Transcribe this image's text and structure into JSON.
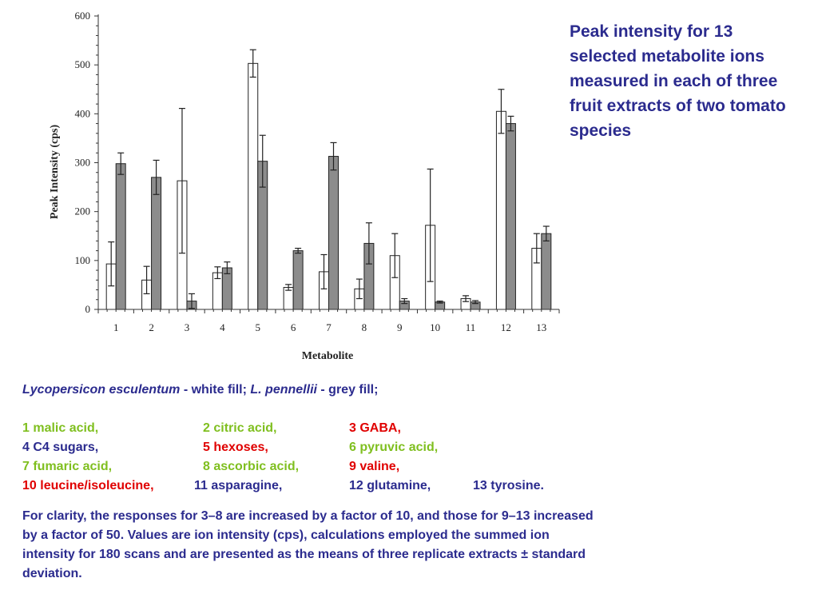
{
  "colors": {
    "text": "#2b2b8e",
    "red": "#e00000",
    "green": "#7fbf1f",
    "white_fill": "#ffffff",
    "grey_fill": "#8c8c8c"
  },
  "side_title": "Peak intensity for 13 selected metabolite ions measured in each of three fruit extracts of two tomato species",
  "legend": {
    "species1": "Lycopersicon esculentum",
    "species1_suffix": " - white fill; ",
    "species2": "L. pennellii",
    "species2_suffix": " - grey fill;"
  },
  "metabolites": [
    {
      "text": "1 malic acid,",
      "color": "green"
    },
    {
      "text": "2 citric acid,",
      "color": "green"
    },
    {
      "text": "3 GABA,",
      "color": "red"
    },
    {
      "text": "4 C4 sugars,",
      "color": "text"
    },
    {
      "text": "5 hexoses,",
      "color": "red"
    },
    {
      "text": "6 pyruvic acid,",
      "color": "green"
    },
    {
      "text": "7 fumaric acid,",
      "color": "green"
    },
    {
      "text": "8 ascorbic acid,",
      "color": "green"
    },
    {
      "text": "9 valine,",
      "color": "red"
    },
    {
      "text": "10 leucine/isoleucine,",
      "color": "red"
    },
    {
      "text": "11 asparagine,",
      "color": "text"
    },
    {
      "text": "12 glutamine,",
      "color": "text"
    },
    {
      "text": "13 tyrosine.",
      "color": "text"
    }
  ],
  "clarity_note": "For clarity, the responses for 3–8 are increased by a factor of 10, and those for 9–13 increased by a factor of 50. Values are ion intensity (cps), calculations employed the summed ion intensity for 180 scans and are presented as the means of three replicate extracts ± standard deviation.",
  "chart_data": {
    "type": "bar",
    "xlabel": "Metabolite",
    "ylabel": "Peak Intensity (cps)",
    "ylim": [
      0,
      600
    ],
    "yticks": [
      0,
      100,
      200,
      300,
      400,
      500,
      600
    ],
    "grid": false,
    "error_bars": true,
    "categories": [
      "1",
      "2",
      "3",
      "4",
      "5",
      "6",
      "7",
      "8",
      "9",
      "10",
      "11",
      "12",
      "13"
    ],
    "series": [
      {
        "fill": "white",
        "values": [
          93,
          60,
          263,
          75,
          503,
          45,
          77,
          42,
          110,
          172,
          22,
          405,
          125
        ],
        "errors": [
          45,
          28,
          148,
          12,
          28,
          6,
          35,
          20,
          45,
          115,
          6,
          45,
          30
        ]
      },
      {
        "fill": "grey",
        "values": [
          298,
          270,
          17,
          85,
          303,
          120,
          313,
          135,
          17,
          15,
          15,
          380,
          155
        ],
        "errors": [
          22,
          35,
          15,
          12,
          53,
          5,
          28,
          42,
          5,
          2,
          3,
          15,
          15
        ]
      }
    ]
  }
}
